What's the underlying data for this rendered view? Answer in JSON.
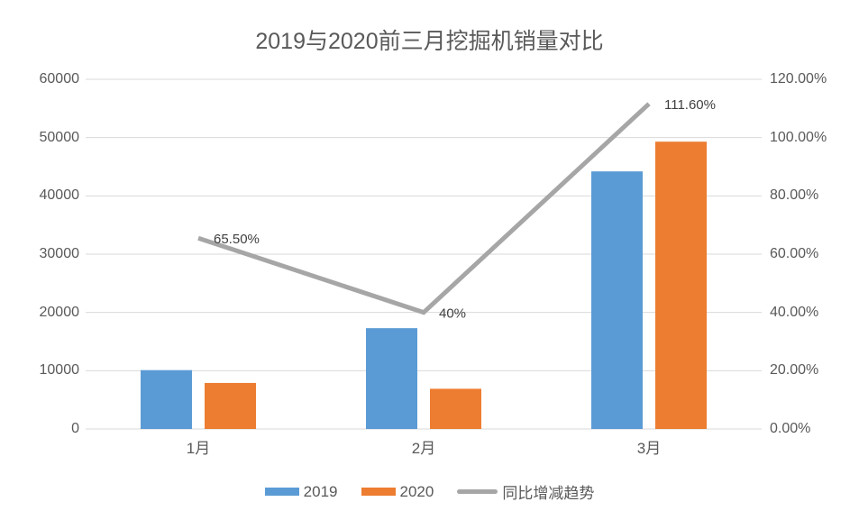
{
  "chart_data": {
    "type": "bar",
    "subtype": "combo-bar-line",
    "title": "2019与2020前三月挖掘机销量对比",
    "categories": [
      "1月",
      "2月",
      "3月"
    ],
    "series": [
      {
        "name": "2019",
        "kind": "bar",
        "axis": "left",
        "color": "#5B9BD5",
        "values": [
          10100,
          17300,
          44200
        ]
      },
      {
        "name": "2020",
        "kind": "bar",
        "axis": "left",
        "color": "#ED7D31",
        "values": [
          7900,
          6900,
          49300
        ]
      },
      {
        "name": "同比增减趋势",
        "kind": "line",
        "axis": "right",
        "color": "#A6A6A6",
        "values": [
          65.5,
          40,
          111.6
        ],
        "point_labels": [
          "65.50%",
          "40%",
          "111.60%"
        ]
      }
    ],
    "left_axis": {
      "min": 0,
      "max": 60000,
      "step": 10000,
      "ticks": [
        {
          "value": 0,
          "label": "0"
        },
        {
          "value": 10000,
          "label": "10000"
        },
        {
          "value": 20000,
          "label": "20000"
        },
        {
          "value": 30000,
          "label": "30000"
        },
        {
          "value": 40000,
          "label": "40000"
        },
        {
          "value": 50000,
          "label": "50000"
        },
        {
          "value": 60000,
          "label": "60000"
        }
      ]
    },
    "right_axis": {
      "min": 0,
      "max": 120,
      "step": 20,
      "ticks": [
        {
          "value": 0,
          "label": "0.00%"
        },
        {
          "value": 20,
          "label": "20.00%"
        },
        {
          "value": 40,
          "label": "40.00%"
        },
        {
          "value": 60,
          "label": "60.00%"
        },
        {
          "value": 80,
          "label": "80.00%"
        },
        {
          "value": 100,
          "label": "100.00%"
        },
        {
          "value": 120,
          "label": "120.00%"
        }
      ]
    },
    "legend_position": "bottom",
    "grid": "horizontal",
    "colors": {
      "gridline": "#D9D9D9",
      "axis_text": "#595959",
      "data_label_text": "#404040",
      "title_text": "#595959"
    }
  }
}
